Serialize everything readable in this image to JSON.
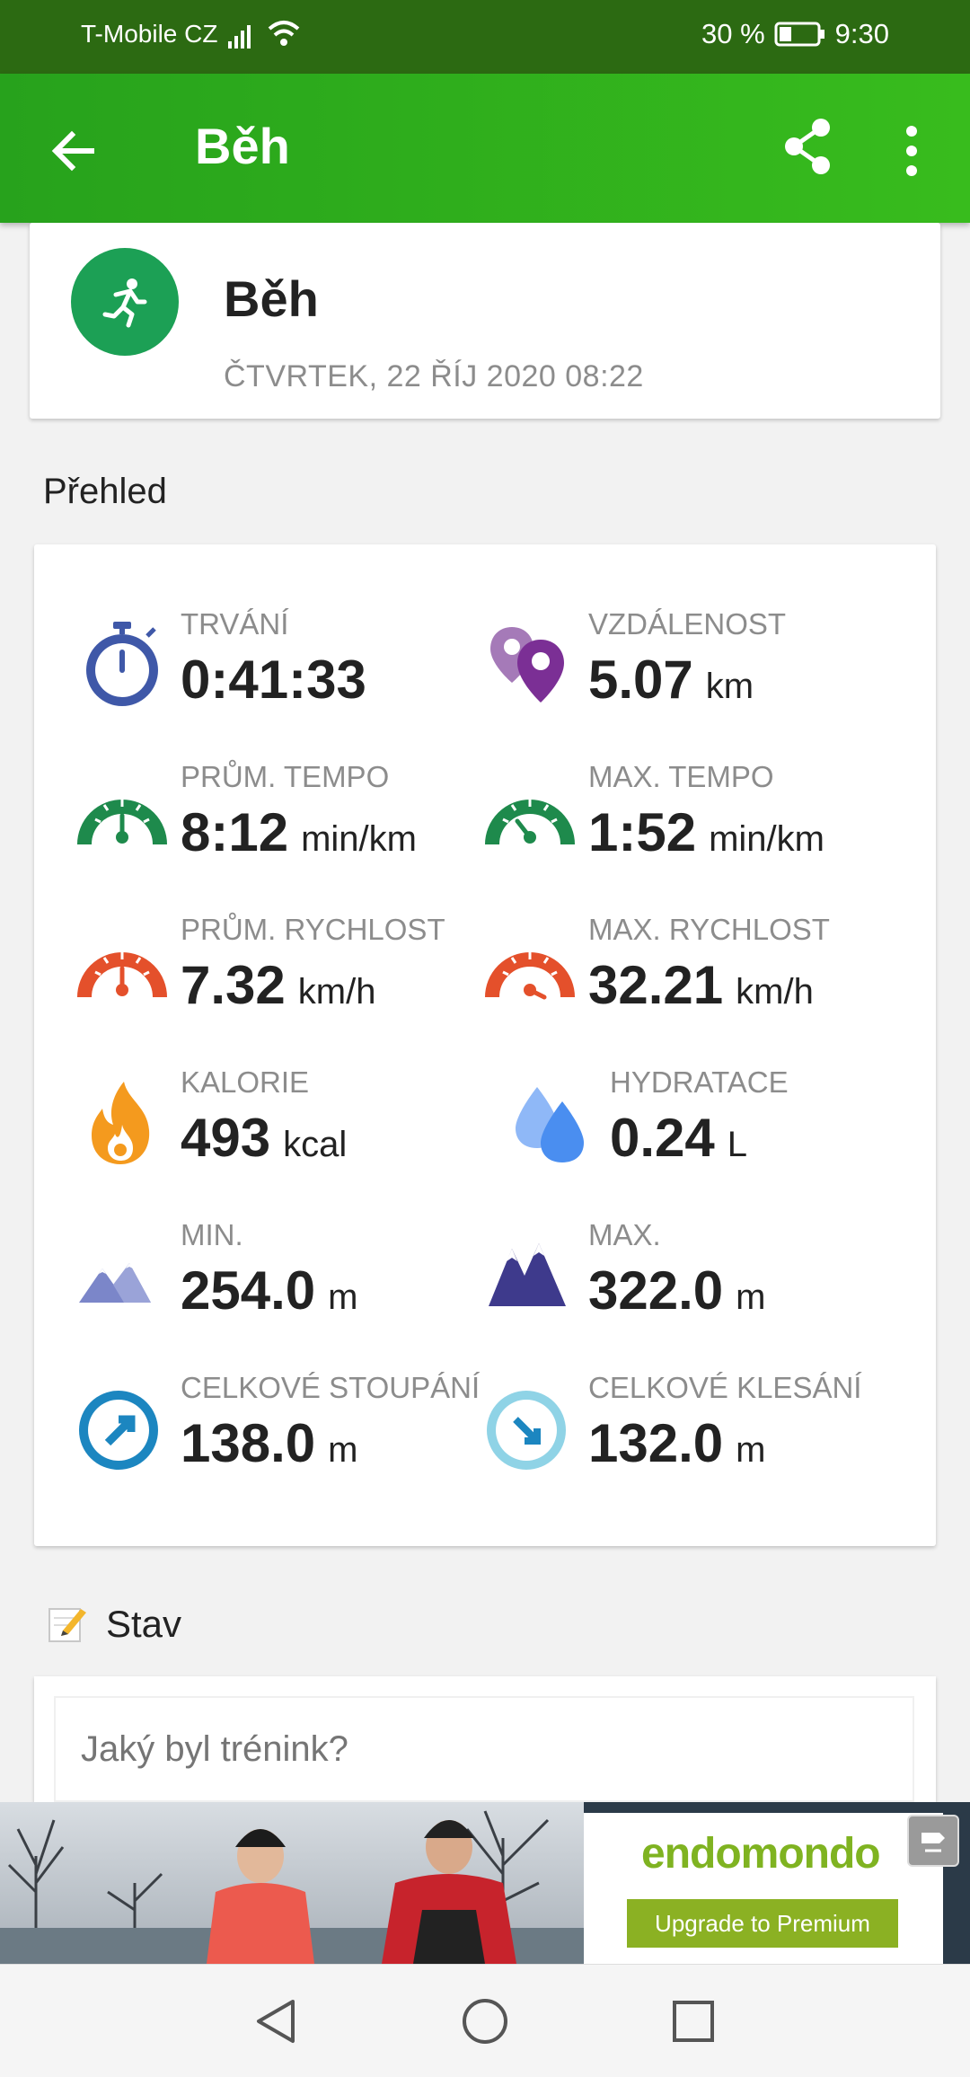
{
  "status_bar": {
    "carrier": "T-Mobile CZ",
    "battery": "30 %",
    "time": "9:30"
  },
  "app_bar": {
    "title": "Běh",
    "icons": [
      "back-arrow-icon",
      "share-icon",
      "more-vert-icon"
    ]
  },
  "activity": {
    "name": "Běh",
    "date": "ČTVRTEK, 22 ŘÍJ 2020 08:22",
    "icon": "running-person-icon",
    "icon_color": "#1ca055"
  },
  "overview": {
    "title": "Přehled",
    "metrics": [
      {
        "label": "TRVÁNÍ",
        "value": "0:41:33",
        "unit": "",
        "icon": "stopwatch-icon",
        "color": "#3f58a8"
      },
      {
        "label": "VZDÁLENOST",
        "value": "5.07",
        "unit": "km",
        "icon": "map-pins-icon",
        "color": "#7b2f95"
      },
      {
        "label": "PRŮM. TEMPO",
        "value": "8:12",
        "unit": "min/km",
        "icon": "gauge-icon",
        "color": "#1e8a4c"
      },
      {
        "label": "MAX. TEMPO",
        "value": "1:52",
        "unit": "min/km",
        "icon": "gauge-icon",
        "color": "#1e8a4c"
      },
      {
        "label": "PRŮM. RYCHLOST",
        "value": "7.32",
        "unit": "km/h",
        "icon": "gauge-icon",
        "color": "#e4502b"
      },
      {
        "label": "MAX. RYCHLOST",
        "value": "32.21",
        "unit": "km/h",
        "icon": "gauge-icon",
        "color": "#e4502b"
      },
      {
        "label": "KALORIE",
        "value": "493",
        "unit": "kcal",
        "icon": "flame-icon",
        "color": "#f49a1e"
      },
      {
        "label": "HYDRATACE",
        "value": "0.24",
        "unit": "L",
        "icon": "water-drops-icon",
        "color": "#4a8ef0"
      },
      {
        "label": "MIN.",
        "value": "254.0",
        "unit": "m",
        "icon": "mountains-icon",
        "color": "#7b86c9"
      },
      {
        "label": "MAX.",
        "value": "322.0",
        "unit": "m",
        "icon": "mountains-icon",
        "color": "#3e3a8c"
      },
      {
        "label": "CELKOVÉ STOUPÁNÍ",
        "value": "138.0",
        "unit": "m",
        "icon": "ascent-icon",
        "color": "#1c86c0"
      },
      {
        "label": "CELKOVÉ KLESÁNÍ",
        "value": "132.0",
        "unit": "m",
        "icon": "descent-icon",
        "color": "#8fd3e6"
      }
    ]
  },
  "status_section": {
    "title": "Stav",
    "placeholder": "Jaký byl trénink?"
  },
  "ad": {
    "brand": "endomondo",
    "cta": "Upgrade to Premium"
  },
  "nav_bar": {
    "icons": [
      "back-triangle-icon",
      "home-circle-icon",
      "recents-square-icon"
    ]
  }
}
